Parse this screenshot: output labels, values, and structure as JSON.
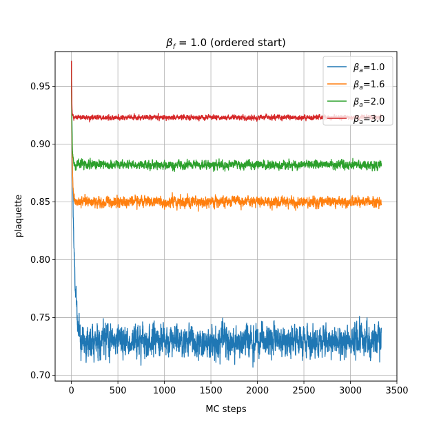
{
  "chart_data": {
    "type": "line",
    "title_prefix": "β",
    "title_sub": "f",
    "title_rest": " = 1.0 (ordered start)",
    "xlabel": "MC steps",
    "ylabel": "plaquette",
    "xlim": [
      -175,
      3500
    ],
    "ylim": [
      0.695,
      0.98
    ],
    "xticks": [
      0,
      500,
      1000,
      1500,
      2000,
      2500,
      3000,
      3500
    ],
    "xtick_labels": [
      "0",
      "500",
      "1000",
      "1500",
      "2000",
      "2500",
      "3000",
      "3500"
    ],
    "yticks": [
      0.7,
      0.75,
      0.8,
      0.85,
      0.9,
      0.95
    ],
    "ytick_labels": [
      "0.70",
      "0.75",
      "0.80",
      "0.85",
      "0.90",
      "0.95"
    ],
    "grid": true,
    "legend_position": "top-right",
    "n_steps": 3333,
    "series": [
      {
        "name": "β",
        "sub": "a",
        "value_text": "=1.0",
        "color": "#1f77b4",
        "start": 0.972,
        "equilibrium": 0.73,
        "noise": 0.0065,
        "relax_steps": 25
      },
      {
        "name": "β",
        "sub": "a",
        "value_text": "=1.6",
        "color": "#ff7f0e",
        "start": 0.972,
        "equilibrium": 0.85,
        "noise": 0.0022,
        "relax_steps": 8
      },
      {
        "name": "β",
        "sub": "a",
        "value_text": "=2.0",
        "color": "#2ca02c",
        "start": 0.972,
        "equilibrium": 0.882,
        "noise": 0.0018,
        "relax_steps": 6
      },
      {
        "name": "β",
        "sub": "a",
        "value_text": "=3.0",
        "color": "#d62728",
        "start": 0.972,
        "equilibrium": 0.923,
        "noise": 0.001,
        "relax_steps": 4
      }
    ]
  }
}
